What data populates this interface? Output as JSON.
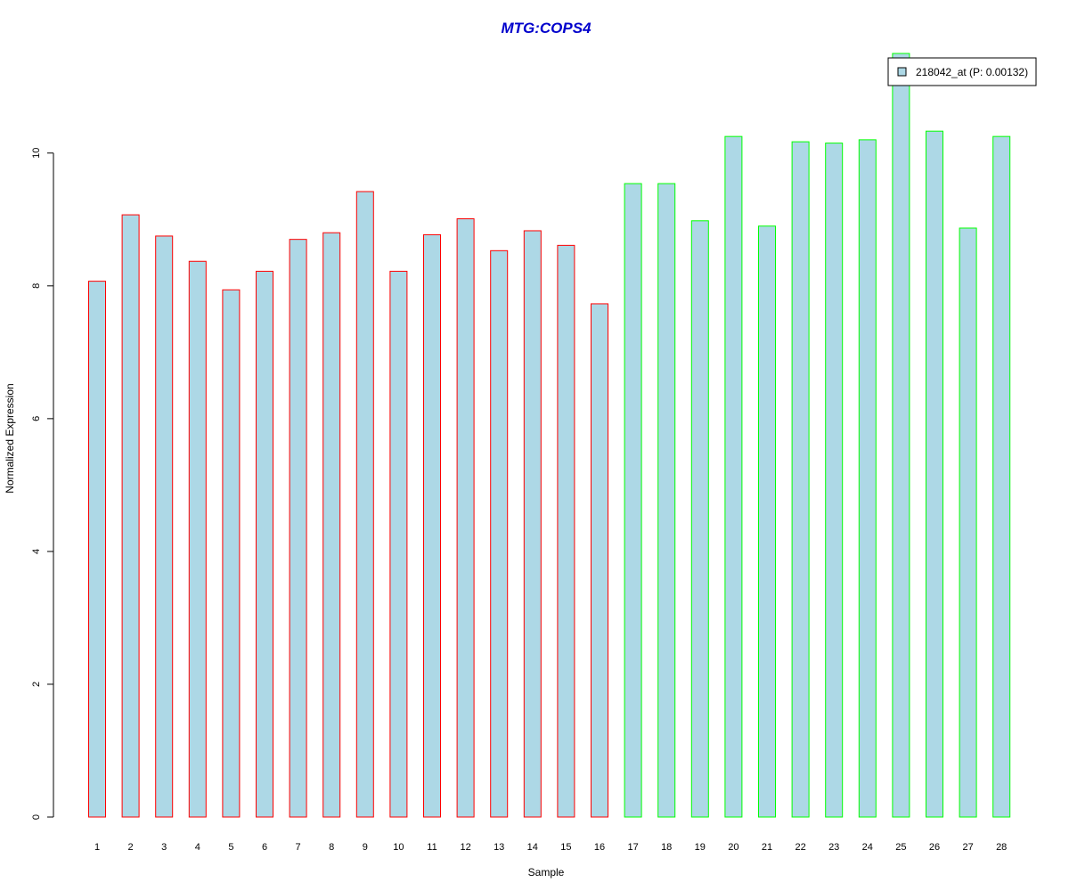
{
  "colors": {
    "title": "#0000CC",
    "bar_fill": "#ADD8E6",
    "group1_border": "#FF0000",
    "group2_border": "#00FF00",
    "axis": "#000000"
  },
  "chart_data": {
    "type": "bar",
    "title": "MTG:COPS4",
    "xlabel": "Sample",
    "ylabel": "Normalized Expression",
    "ylim": [
      0,
      11.5
    ],
    "yticks": [
      0,
      2,
      4,
      6,
      8,
      10
    ],
    "grid": false,
    "legend_position": "top-right",
    "categories": [
      "1",
      "2",
      "3",
      "4",
      "5",
      "6",
      "7",
      "8",
      "9",
      "10",
      "11",
      "12",
      "13",
      "14",
      "15",
      "16",
      "17",
      "18",
      "19",
      "20",
      "21",
      "22",
      "23",
      "24",
      "25",
      "26",
      "27",
      "28"
    ],
    "series": [
      {
        "name": "218042_at (P: 0.00132)",
        "values": [
          8.07,
          9.07,
          8.75,
          8.37,
          7.94,
          8.22,
          8.7,
          8.8,
          9.42,
          8.22,
          8.77,
          9.01,
          8.53,
          8.83,
          8.61,
          7.73,
          9.54,
          9.54,
          8.98,
          10.25,
          8.9,
          10.17,
          10.15,
          10.2,
          11.5,
          10.33,
          8.87,
          10.25
        ],
        "group": [
          1,
          1,
          1,
          1,
          1,
          1,
          1,
          1,
          1,
          1,
          1,
          1,
          1,
          1,
          1,
          1,
          2,
          2,
          2,
          2,
          2,
          2,
          2,
          2,
          2,
          2,
          2,
          2
        ]
      }
    ]
  }
}
